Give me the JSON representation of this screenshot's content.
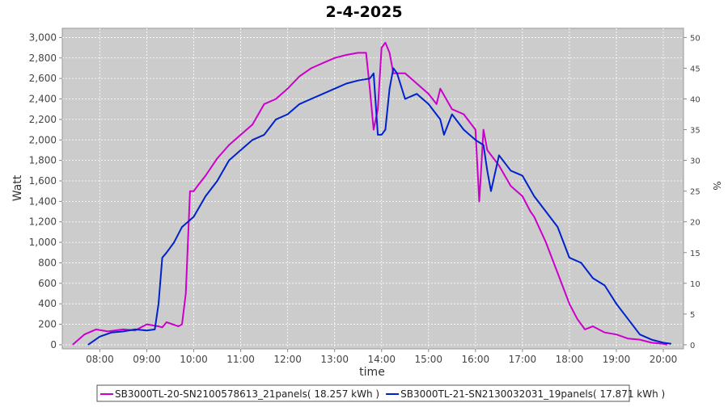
{
  "chart_data": {
    "type": "line",
    "title": "2-4-2025",
    "x_label": "time",
    "y_label": "Watt",
    "y2_label": "%",
    "xlim": [
      7.2,
      20.43
    ],
    "xticks": [
      {
        "value": 8,
        "label": "08:00"
      },
      {
        "value": 9,
        "label": "09:00"
      },
      {
        "value": 10,
        "label": "10:00"
      },
      {
        "value": 11,
        "label": "11:00"
      },
      {
        "value": 12,
        "label": "12:00"
      },
      {
        "value": 13,
        "label": "13:00"
      },
      {
        "value": 14,
        "label": "14:00"
      },
      {
        "value": 15,
        "label": "15:00"
      },
      {
        "value": 16,
        "label": "16:00"
      },
      {
        "value": 17,
        "label": "17:00"
      },
      {
        "value": 18,
        "label": "18:00"
      },
      {
        "value": 19,
        "label": "19:00"
      },
      {
        "value": 20,
        "label": "20:00"
      }
    ],
    "ylim": [
      -40,
      3090
    ],
    "yticks": [
      0,
      200,
      400,
      600,
      800,
      {
        "value": 1000,
        "label": "1,000"
      },
      {
        "value": 1200,
        "label": "1,200"
      },
      {
        "value": 1400,
        "label": "1,400"
      },
      {
        "value": 1600,
        "label": "1,600"
      },
      {
        "value": 1800,
        "label": "1,800"
      },
      {
        "value": 2000,
        "label": "2,000"
      },
      {
        "value": 2200,
        "label": "2,200"
      },
      {
        "value": 2400,
        "label": "2,400"
      },
      {
        "value": 2600,
        "label": "2,600"
      },
      {
        "value": 2800,
        "label": "2,800"
      },
      {
        "value": 3000,
        "label": "3,000"
      }
    ],
    "y2lim": [
      -0.667,
      51.5
    ],
    "y2ticks": [
      0,
      5,
      10,
      15,
      20,
      25,
      30,
      35,
      40,
      45,
      50
    ],
    "grid": true,
    "series": [
      {
        "name": "SB3000TL-20-SN2100578613_21panels( 18.257 kWh )",
        "color": "#cc00cc",
        "x": [
          7.42,
          7.67,
          7.92,
          8.17,
          8.5,
          8.75,
          9.0,
          9.25,
          9.33,
          9.42,
          9.67,
          9.75,
          9.83,
          9.92,
          10.0,
          10.08,
          10.25,
          10.5,
          10.75,
          11.0,
          11.25,
          11.5,
          11.75,
          12.0,
          12.25,
          12.5,
          12.75,
          13.0,
          13.25,
          13.5,
          13.67,
          13.75,
          13.83,
          13.92,
          14.0,
          14.08,
          14.17,
          14.25,
          14.5,
          14.75,
          15.0,
          15.17,
          15.25,
          15.5,
          15.75,
          16.0,
          16.08,
          16.17,
          16.25,
          16.5,
          16.75,
          17.0,
          17.17,
          17.25,
          17.5,
          17.75,
          18.0,
          18.17,
          18.33,
          18.5,
          18.75,
          19.0,
          19.25,
          19.5,
          19.75,
          20.0,
          20.08
        ],
        "values": [
          0,
          100,
          150,
          130,
          150,
          140,
          200,
          180,
          170,
          220,
          180,
          200,
          500,
          1500,
          1500,
          1550,
          1650,
          1820,
          1950,
          2050,
          2150,
          2350,
          2400,
          2500,
          2620,
          2700,
          2750,
          2800,
          2830,
          2850,
          2850,
          2500,
          2100,
          2300,
          2900,
          2950,
          2850,
          2650,
          2650,
          2550,
          2450,
          2350,
          2500,
          2300,
          2250,
          2100,
          1400,
          2100,
          1900,
          1750,
          1550,
          1450,
          1300,
          1250,
          1000,
          700,
          400,
          250,
          150,
          180,
          120,
          100,
          60,
          50,
          20,
          10,
          0
        ]
      },
      {
        "name": "SB3000TL-21-SN2130032031_19panels( 17.871 kWh )",
        "color": "#0022cc",
        "x": [
          7.75,
          8.0,
          8.25,
          8.5,
          8.75,
          9.0,
          9.17,
          9.25,
          9.33,
          9.42,
          9.58,
          9.75,
          10.0,
          10.25,
          10.5,
          10.75,
          11.0,
          11.25,
          11.5,
          11.75,
          12.0,
          12.25,
          12.5,
          12.75,
          13.0,
          13.25,
          13.5,
          13.75,
          13.83,
          13.92,
          14.0,
          14.08,
          14.17,
          14.25,
          14.33,
          14.5,
          14.75,
          15.0,
          15.25,
          15.33,
          15.5,
          15.75,
          16.0,
          16.17,
          16.25,
          16.33,
          16.5,
          16.75,
          17.0,
          17.25,
          17.5,
          17.75,
          18.0,
          18.25,
          18.5,
          18.75,
          19.0,
          19.25,
          19.5,
          19.75,
          20.0,
          20.17
        ],
        "values": [
          0,
          80,
          120,
          130,
          150,
          140,
          150,
          400,
          850,
          900,
          1000,
          1150,
          1250,
          1450,
          1600,
          1800,
          1900,
          2000,
          2050,
          2200,
          2250,
          2350,
          2400,
          2450,
          2500,
          2550,
          2580,
          2600,
          2650,
          2050,
          2050,
          2100,
          2500,
          2700,
          2650,
          2400,
          2450,
          2350,
          2200,
          2050,
          2250,
          2100,
          2000,
          1950,
          1700,
          1500,
          1850,
          1700,
          1650,
          1450,
          1300,
          1150,
          850,
          800,
          650,
          580,
          400,
          250,
          100,
          50,
          20,
          10
        ]
      }
    ]
  }
}
